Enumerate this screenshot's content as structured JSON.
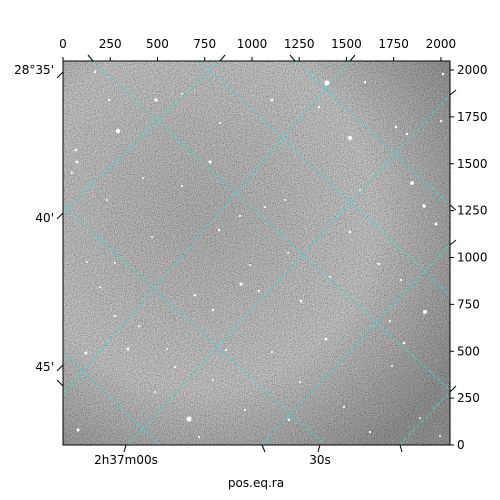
{
  "chart_data": {
    "type": "image",
    "xlabel": "pos.eq.ra",
    "pixel_axis_top": {
      "ticks": [
        0,
        250,
        500,
        750,
        1000,
        1250,
        1500,
        1750,
        2000
      ],
      "range": [
        0,
        2048
      ]
    },
    "pixel_axis_right": {
      "ticks": [
        0,
        250,
        500,
        750,
        1000,
        1250,
        1500,
        1750,
        2000
      ],
      "range": [
        0,
        2048
      ]
    },
    "world_ticks_bottom": [
      "2h37m00s",
      "30s"
    ],
    "world_ticks_left": [
      "28°35'",
      "40'",
      "45'"
    ],
    "grid": true,
    "grid_color": "#3fd7d7",
    "image_colormap": "gray",
    "background": "#ffffff"
  }
}
